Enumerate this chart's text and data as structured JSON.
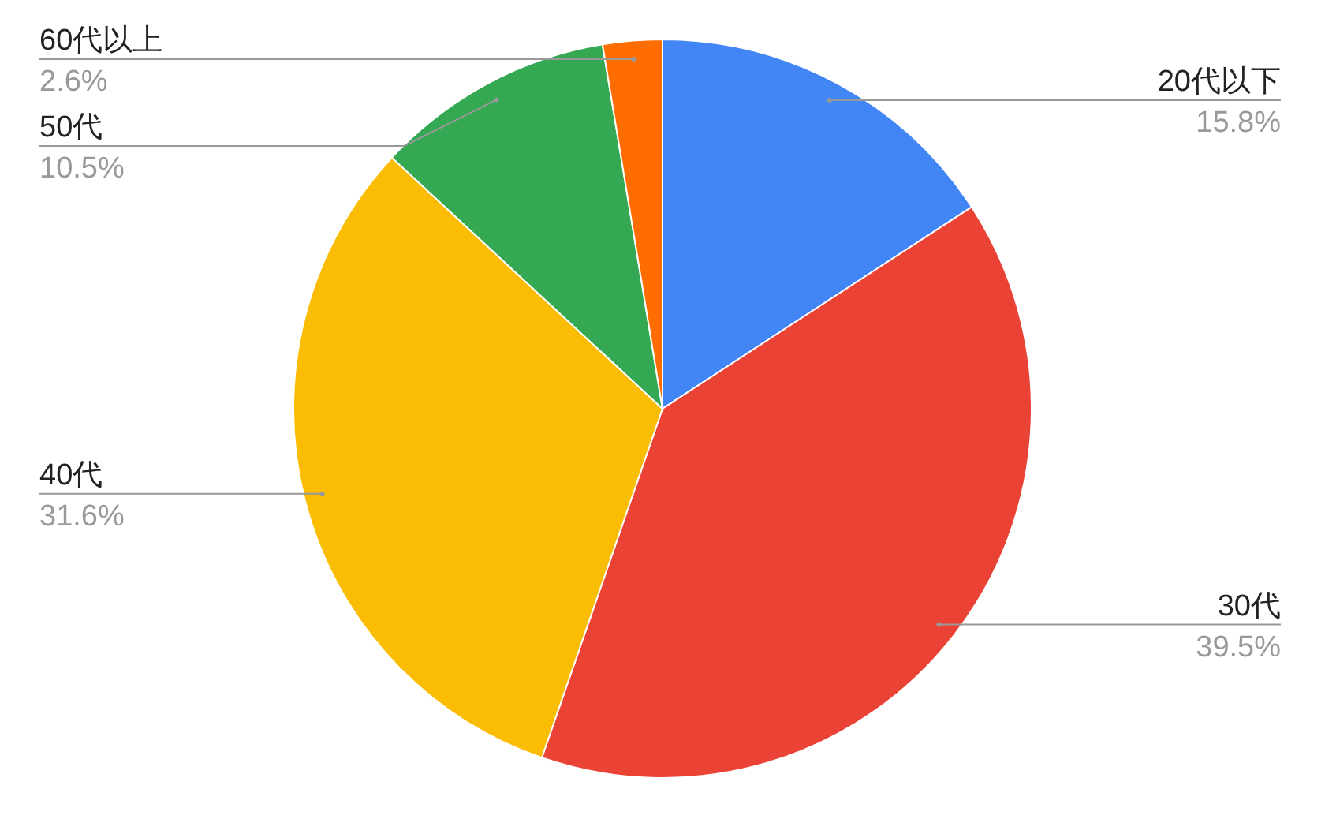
{
  "chart_data": {
    "type": "pie",
    "categories": [
      "20代以下",
      "30代",
      "40代",
      "50代",
      "60代以上"
    ],
    "values": [
      15.8,
      39.5,
      31.6,
      10.5,
      2.6
    ],
    "value_labels": [
      "15.8%",
      "39.5%",
      "31.6%",
      "10.5%",
      "2.6%"
    ],
    "colors": [
      "#4285f4",
      "#ea4335",
      "#fbbc04",
      "#34a853",
      "#ff6d01"
    ]
  }
}
